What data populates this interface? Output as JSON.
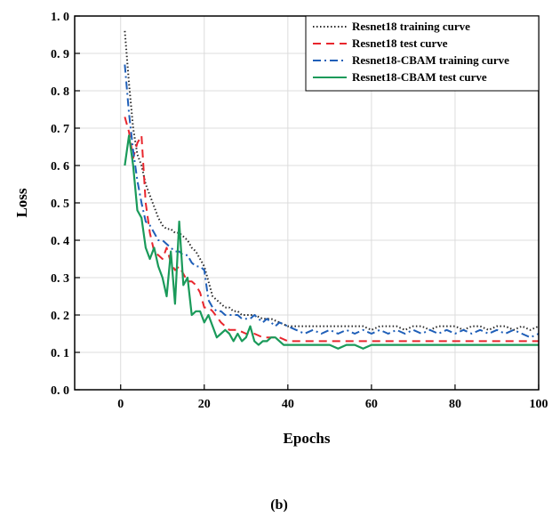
{
  "chart_data": {
    "type": "line",
    "xlabel": "Epochs",
    "ylabel": "Loss",
    "xlim": [
      -11,
      100
    ],
    "ylim": [
      0,
      1.0
    ],
    "xticks": [
      0,
      20,
      40,
      60,
      80,
      100
    ],
    "xtick_labels": [
      "0",
      "20",
      "40",
      "60",
      "80",
      "100"
    ],
    "yticks": [
      0.0,
      0.1,
      0.2,
      0.3,
      0.4,
      0.5,
      0.6,
      0.7,
      0.8,
      0.9,
      1.0
    ],
    "ytick_labels": [
      "0. 0",
      "0. 1",
      "0. 2",
      "0. 3",
      "0. 4",
      "0. 5",
      "0. 6",
      "0. 7",
      "0. 8",
      "0. 9",
      "1. 0"
    ],
    "grid": true,
    "legend_position": "top-right",
    "series": [
      {
        "name": "Resnet18 training curve",
        "color": "#2a2a2a",
        "dash": "dotted",
        "x": [
          1,
          2,
          3,
          4,
          5,
          6,
          7,
          8,
          9,
          10,
          11,
          12,
          13,
          14,
          15,
          16,
          17,
          18,
          19,
          20,
          21,
          22,
          23,
          24,
          25,
          26,
          27,
          28,
          29,
          30,
          32,
          34,
          36,
          38,
          40,
          42,
          44,
          46,
          48,
          50,
          52,
          54,
          56,
          58,
          60,
          62,
          64,
          66,
          68,
          70,
          72,
          74,
          76,
          78,
          80,
          82,
          84,
          86,
          88,
          90,
          92,
          94,
          96,
          98,
          100
        ],
        "y": [
          0.96,
          0.82,
          0.7,
          0.63,
          0.6,
          0.55,
          0.52,
          0.49,
          0.46,
          0.44,
          0.43,
          0.43,
          0.42,
          0.42,
          0.41,
          0.4,
          0.38,
          0.37,
          0.35,
          0.33,
          0.29,
          0.25,
          0.24,
          0.23,
          0.22,
          0.22,
          0.21,
          0.21,
          0.2,
          0.2,
          0.2,
          0.19,
          0.19,
          0.18,
          0.17,
          0.17,
          0.17,
          0.17,
          0.17,
          0.17,
          0.17,
          0.17,
          0.17,
          0.17,
          0.16,
          0.17,
          0.17,
          0.17,
          0.16,
          0.17,
          0.17,
          0.16,
          0.17,
          0.17,
          0.17,
          0.16,
          0.17,
          0.17,
          0.16,
          0.17,
          0.17,
          0.16,
          0.17,
          0.16,
          0.17
        ]
      },
      {
        "name": "Resnet18 test curve",
        "color": "#e8262d",
        "dash": "dashed",
        "x": [
          1,
          2,
          3,
          4,
          5,
          6,
          7,
          8,
          9,
          10,
          11,
          12,
          13,
          14,
          15,
          16,
          17,
          18,
          19,
          20,
          21,
          22,
          24,
          26,
          28,
          30,
          32,
          34,
          36,
          38,
          40,
          45,
          50,
          55,
          60,
          70,
          80,
          90,
          100
        ],
        "y": [
          0.73,
          0.69,
          0.62,
          0.66,
          0.68,
          0.5,
          0.42,
          0.37,
          0.36,
          0.35,
          0.38,
          0.34,
          0.32,
          0.33,
          0.31,
          0.29,
          0.29,
          0.28,
          0.26,
          0.22,
          0.22,
          0.21,
          0.18,
          0.16,
          0.16,
          0.15,
          0.15,
          0.14,
          0.14,
          0.14,
          0.13,
          0.13,
          0.13,
          0.13,
          0.13,
          0.13,
          0.13,
          0.13,
          0.13
        ]
      },
      {
        "name": "Resnet18-CBAM training curve",
        "color": "#1f5fb8",
        "dash": "dashdot",
        "x": [
          1,
          2,
          3,
          4,
          5,
          6,
          7,
          8,
          9,
          10,
          11,
          12,
          13,
          14,
          15,
          16,
          17,
          18,
          19,
          20,
          21,
          22,
          23,
          24,
          25,
          26,
          27,
          28,
          29,
          30,
          31,
          32,
          33,
          34,
          35,
          36,
          37,
          38,
          40,
          42,
          44,
          46,
          48,
          50,
          52,
          54,
          56,
          58,
          60,
          62,
          64,
          66,
          68,
          70,
          72,
          74,
          76,
          78,
          80,
          82,
          84,
          86,
          88,
          90,
          92,
          94,
          96,
          98,
          100
        ],
        "y": [
          0.87,
          0.74,
          0.64,
          0.56,
          0.5,
          0.45,
          0.44,
          0.42,
          0.4,
          0.4,
          0.39,
          0.38,
          0.37,
          0.37,
          0.36,
          0.36,
          0.34,
          0.33,
          0.33,
          0.32,
          0.24,
          0.22,
          0.21,
          0.21,
          0.2,
          0.2,
          0.2,
          0.2,
          0.19,
          0.19,
          0.19,
          0.2,
          0.19,
          0.18,
          0.19,
          0.18,
          0.17,
          0.18,
          0.17,
          0.16,
          0.15,
          0.16,
          0.15,
          0.16,
          0.15,
          0.16,
          0.15,
          0.16,
          0.15,
          0.16,
          0.15,
          0.16,
          0.15,
          0.16,
          0.15,
          0.16,
          0.15,
          0.16,
          0.15,
          0.16,
          0.15,
          0.16,
          0.15,
          0.16,
          0.15,
          0.16,
          0.15,
          0.14,
          0.15
        ]
      },
      {
        "name": "Resnet18-CBAM test curve",
        "color": "#1a9a5a",
        "dash": "solid",
        "x": [
          1,
          2,
          3,
          4,
          5,
          6,
          7,
          8,
          9,
          10,
          11,
          12,
          13,
          14,
          15,
          16,
          17,
          18,
          19,
          20,
          21,
          22,
          23,
          24,
          25,
          26,
          27,
          28,
          29,
          30,
          31,
          32,
          33,
          34,
          35,
          36,
          37,
          38,
          39,
          40,
          45,
          50,
          52,
          54,
          56,
          58,
          60,
          70,
          80,
          90,
          100
        ],
        "y": [
          0.6,
          0.68,
          0.6,
          0.48,
          0.46,
          0.38,
          0.35,
          0.38,
          0.33,
          0.3,
          0.25,
          0.37,
          0.23,
          0.45,
          0.28,
          0.3,
          0.2,
          0.21,
          0.21,
          0.18,
          0.2,
          0.17,
          0.14,
          0.15,
          0.16,
          0.15,
          0.13,
          0.15,
          0.13,
          0.14,
          0.17,
          0.13,
          0.12,
          0.13,
          0.13,
          0.14,
          0.14,
          0.13,
          0.12,
          0.12,
          0.12,
          0.12,
          0.11,
          0.12,
          0.12,
          0.11,
          0.12,
          0.12,
          0.12,
          0.12,
          0.12
        ]
      }
    ]
  },
  "caption": "(b)"
}
